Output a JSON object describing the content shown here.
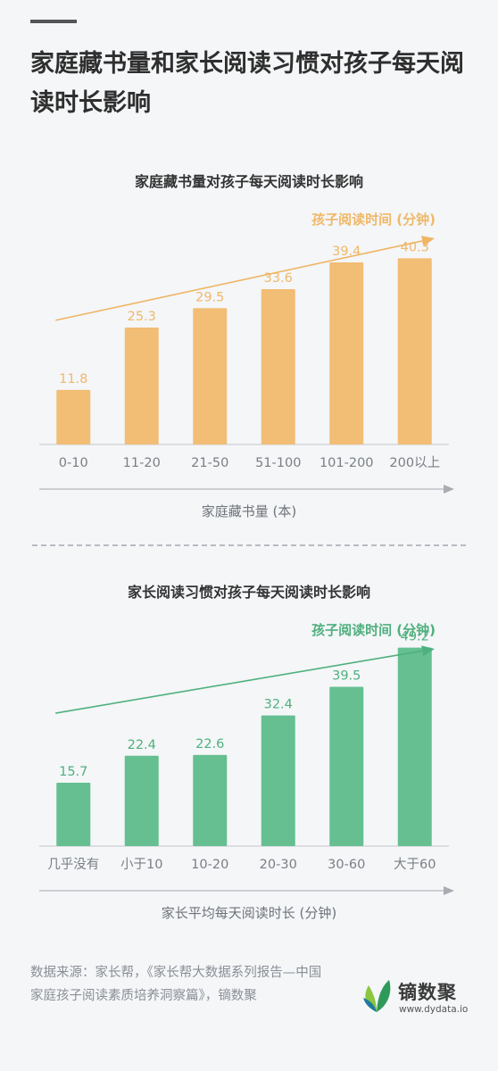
{
  "main_title": "家庭藏书量和家长阅读习惯对孩子每天阅读时长影响",
  "chart_data": [
    {
      "type": "bar",
      "title": "家庭藏书量对孩子每天阅读时长影响",
      "ylabel": "孩子阅读时间 (分钟)",
      "xlabel": "家庭藏书量 (本)",
      "categories": [
        "0-10",
        "11-20",
        "21-50",
        "51-100",
        "101-200",
        "200以上"
      ],
      "values": [
        11.8,
        25.3,
        29.5,
        33.6,
        39.4,
        40.3
      ],
      "ylim": [
        0,
        45
      ],
      "color": "#f2bd74",
      "label_color": "#f0b868",
      "trend_color": "#efb565"
    },
    {
      "type": "bar",
      "title": "家长阅读习惯对孩子每天阅读时长影响",
      "ylabel": "孩子阅读时间 (分钟)",
      "xlabel": "家长平均每天阅读时长 (分钟)",
      "categories": [
        "几乎没有",
        "小于10",
        "10-20",
        "20-30",
        "30-60",
        "大于60"
      ],
      "values": [
        15.7,
        22.4,
        22.6,
        32.4,
        39.5,
        49.2
      ],
      "ylim": [
        0,
        52
      ],
      "color": "#66bf91",
      "label_color": "#4fb07e",
      "trend_color": "#4fb07e"
    }
  ],
  "source": "数据来源：家长帮，《家长帮大数据系列报告—中国家庭孩子阅读素质培养洞察篇》，镝数聚",
  "logo": {
    "name": "镝数聚",
    "url": "www.dydata.io"
  }
}
